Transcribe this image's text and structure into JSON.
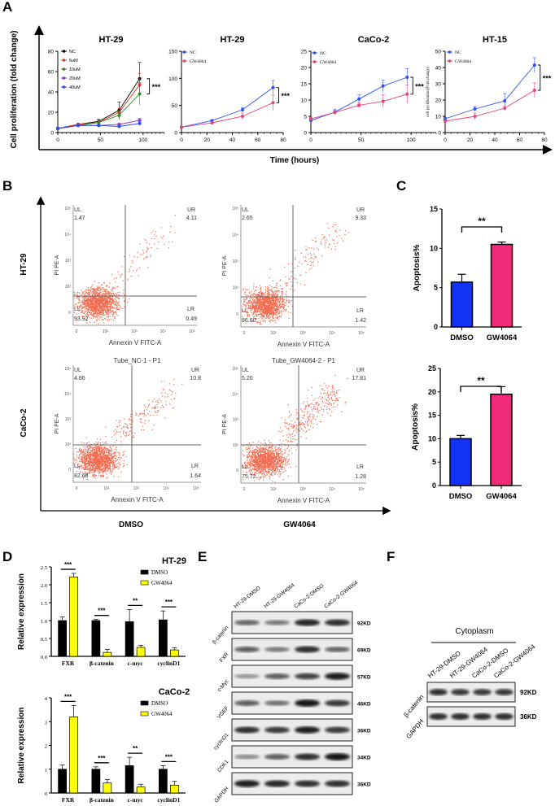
{
  "panel_labels": {
    "A": "A",
    "B": "B",
    "C": "C",
    "D": "D",
    "E": "E",
    "F": "F"
  },
  "chart_data": [
    {
      "id": "A1",
      "type": "line",
      "title": "HT-29",
      "x": [
        0,
        24,
        48,
        72,
        96
      ],
      "xlim": [
        0,
        125
      ],
      "xticks": [
        0,
        50,
        100
      ],
      "ylim": [
        0,
        80
      ],
      "yticks": [
        0,
        20,
        40,
        60,
        80
      ],
      "series": [
        {
          "name": "NC",
          "color": "#000000",
          "values": [
            4,
            8,
            11,
            22,
            53
          ],
          "err": [
            1,
            1,
            2,
            8,
            16
          ]
        },
        {
          "name": "5uM",
          "color": "#e8321e",
          "values": [
            4,
            8,
            10,
            20,
            47
          ],
          "err": [
            1,
            1,
            2,
            4,
            11
          ]
        },
        {
          "name": "10uM",
          "color": "#2a8a2a",
          "values": [
            4,
            7,
            10,
            17,
            38
          ],
          "err": [
            1,
            1,
            2,
            4,
            11
          ]
        },
        {
          "name": "20uM",
          "color": "#8a3ac0",
          "values": [
            4,
            7,
            7,
            8,
            12
          ],
          "err": [
            1,
            1,
            1,
            1,
            2
          ]
        },
        {
          "name": "40uM",
          "color": "#2a4af0",
          "values": [
            4,
            7,
            7,
            6,
            9
          ],
          "err": [
            1,
            1,
            1,
            1,
            2
          ]
        }
      ],
      "significance": "***"
    },
    {
      "id": "A2",
      "type": "line",
      "title": "HT-29",
      "x": [
        0,
        24,
        48,
        72
      ],
      "xlim": [
        0,
        80
      ],
      "xticks": [
        0,
        20,
        40,
        60,
        80
      ],
      "ylim": [
        0,
        150
      ],
      "yticks": [
        0,
        50,
        100,
        150
      ],
      "series": [
        {
          "name": "NC",
          "color": "#3050f0",
          "values": [
            10,
            22,
            42,
            83
          ],
          "err": [
            1,
            2,
            4,
            13
          ]
        },
        {
          "name": "GW4064",
          "color": "#e8407a",
          "values": [
            10,
            18,
            30,
            55
          ],
          "err": [
            1,
            2,
            6,
            14
          ]
        }
      ],
      "significance": "***"
    },
    {
      "id": "A3",
      "type": "line",
      "title": "CaCo-2",
      "x": [
        0,
        24,
        48,
        72,
        96
      ],
      "xlim": [
        0,
        125
      ],
      "xticks": [
        0,
        50,
        100
      ],
      "ylim": [
        0,
        25
      ],
      "yticks": [
        0,
        5,
        10,
        15,
        20,
        25
      ],
      "series": [
        {
          "name": "NC",
          "color": "#3050f0",
          "values": [
            3.7,
            6.3,
            10.3,
            14.3,
            17
          ],
          "err": [
            0.6,
            0.8,
            1.3,
            1.8,
            2.6
          ]
        },
        {
          "name": "GW4064",
          "color": "#e8407a",
          "values": [
            4.2,
            6.2,
            8.4,
            9.6,
            11.8
          ],
          "err": [
            0.5,
            0.6,
            0.8,
            2,
            2.8
          ]
        }
      ],
      "significance": "***"
    },
    {
      "id": "A4",
      "type": "line",
      "title": "HT-15",
      "ylabel": "cell proliferation(Fold change)",
      "x": [
        0,
        24,
        48,
        72
      ],
      "xlim": [
        0,
        80
      ],
      "xticks": [
        0,
        20,
        40,
        60,
        80
      ],
      "ylim": [
        0,
        50
      ],
      "yticks": [
        0,
        10,
        20,
        30,
        40,
        50
      ],
      "series": [
        {
          "name": "NC",
          "color": "#3050f0",
          "values": [
            8.5,
            14.5,
            19.5,
            41.5
          ],
          "err": [
            1,
            1.5,
            4.5,
            4.5
          ]
        },
        {
          "name": "GW4064",
          "color": "#e8407a",
          "values": [
            7,
            10,
            15,
            26
          ],
          "err": [
            1,
            2,
            1.5,
            4.5
          ]
        }
      ],
      "significance": "***"
    },
    {
      "id": "C1",
      "type": "bar",
      "ylabel": "Apoptosis%",
      "categories": [
        "DMSO",
        "GW4064"
      ],
      "values": [
        5.7,
        10.5
      ],
      "err": [
        1,
        0.3
      ],
      "colors": [
        "#1233f5",
        "#f02c78"
      ],
      "ylim": [
        0,
        15
      ],
      "yticks": [
        0,
        5,
        10,
        15
      ],
      "significance": "**"
    },
    {
      "id": "C2",
      "type": "bar",
      "ylabel": "Apoptosis%",
      "categories": [
        "DMSO",
        "GW4064"
      ],
      "values": [
        10,
        19.5
      ],
      "err": [
        0.7,
        1.6
      ],
      "colors": [
        "#1233f5",
        "#f02c78"
      ],
      "ylim": [
        0,
        25
      ],
      "yticks": [
        0,
        5,
        10,
        15,
        20,
        25
      ],
      "significance": "**"
    },
    {
      "id": "D1",
      "type": "bar",
      "title": "HT-29",
      "ylabel": "Relative expression",
      "categories": [
        "FXR",
        "β-catenin",
        "c-myc",
        "cyclinD1"
      ],
      "ylim": [
        0,
        2.5
      ],
      "yticks": [
        "0.0",
        "0.5",
        "1.0",
        "1.5",
        "2.0",
        "2.5"
      ],
      "series": [
        {
          "name": "DMSO",
          "color": "#000000",
          "values": [
            1,
            1,
            0.97,
            1.02
          ],
          "err": [
            0.1,
            0.03,
            0.34,
            0.25
          ]
        },
        {
          "name": "GW4064",
          "color": "#ffff00",
          "values": [
            2.22,
            0.11,
            0.25,
            0.18
          ],
          "err": [
            0.1,
            0.08,
            0.06,
            0.06
          ]
        }
      ],
      "significance": [
        "***",
        "***",
        "**",
        "***"
      ]
    },
    {
      "id": "D2",
      "type": "bar",
      "title": "CaCo-2",
      "ylabel": "Relative expression",
      "categories": [
        "FXR",
        "β-catenin",
        "c-myc",
        "cyclinD1"
      ],
      "ylim": [
        0,
        4
      ],
      "yticks": [
        "0",
        "1",
        "2",
        "3",
        "4"
      ],
      "series": [
        {
          "name": "DMSO",
          "color": "#000000",
          "values": [
            1,
            1,
            1.15,
            1
          ],
          "err": [
            0.18,
            0.1,
            0.35,
            0.15
          ]
        },
        {
          "name": "GW4064",
          "color": "#ffff00",
          "values": [
            3.2,
            0.42,
            0.25,
            0.33
          ],
          "err": [
            0.48,
            0.14,
            0.12,
            0.16
          ]
        }
      ],
      "significance": [
        "***",
        "***",
        "**",
        "***"
      ]
    }
  ],
  "panel_a": {
    "ylabel": "Cell proliferation (fold change)",
    "xlabel": "Time (hours)"
  },
  "panel_b": {
    "row_labels": [
      "HT-29",
      "CaCo-2"
    ],
    "col_labels": [
      "DMSO",
      "GW4064"
    ],
    "xlabel": "Annexin V FITC-A",
    "ylabel": "PI PE-A",
    "xticks": [
      "0",
      "10²",
      "10³",
      "10⁴",
      "10⁵"
    ],
    "yticks": [
      "0",
      "10²",
      "10³",
      "10⁴",
      "10⁵"
    ],
    "plots": [
      {
        "title": "",
        "UL": "1.47",
        "UR": "4.11",
        "LL": "93.92",
        "LR": "0.49"
      },
      {
        "title": "",
        "UL": "2.65",
        "UR": "9.33",
        "LL": "86.60",
        "LR": "1.42"
      },
      {
        "title": "Tube_NC-1 - P1",
        "UL": "4.86",
        "UR": "10.8",
        "LL": "82.68",
        "LR": "1.64"
      },
      {
        "title": "Tube_GW4064-2 - P1",
        "UL": "5.20",
        "UR": "17.81",
        "LL": "75.72",
        "LR": "1.28"
      }
    ],
    "point_color": "#f26a4f"
  },
  "panel_e": {
    "lanes": [
      "HT-29-DMSO",
      "HT-29-GW4064",
      "CaCo-2-DMSO",
      "CaCo-2-GW4064"
    ],
    "rows": [
      {
        "protein": "β-catenin",
        "size": "92KD",
        "band_intensity": [
          0.55,
          0.45,
          0.9,
          0.85
        ]
      },
      {
        "protein": "FXR",
        "size": "69KD",
        "band_intensity": [
          0.6,
          0.45,
          0.85,
          0.55
        ]
      },
      {
        "protein": "c-Myc",
        "size": "57KD",
        "band_intensity": [
          0.3,
          0.6,
          0.75,
          0.95
        ]
      },
      {
        "protein": "VGEF",
        "size": "46KD",
        "band_intensity": [
          0.6,
          0.5,
          1.0,
          0.8
        ]
      },
      {
        "protein": "cyclinD1",
        "size": "36KD",
        "band_intensity": [
          0.85,
          0.8,
          0.95,
          0.8
        ]
      },
      {
        "protein": "CDK1",
        "size": "34KD",
        "band_intensity": [
          0.35,
          0.6,
          0.85,
          1.0
        ]
      },
      {
        "protein": "GAPDH",
        "size": "36KD",
        "band_intensity": [
          0.95,
          0.9,
          0.85,
          0.85
        ]
      }
    ]
  },
  "panel_f": {
    "heading": "Cytoplasm",
    "lanes": [
      "HT-29-DMSO",
      "HT-29-GW4064",
      "CaCo-2-DMSO",
      "CaCo-2-GW4064"
    ],
    "rows": [
      {
        "protein": "β-catenin",
        "size": "92KD",
        "band_intensity": [
          0.85,
          0.8,
          0.8,
          0.8
        ]
      },
      {
        "protein": "GAPDH",
        "size": "36KD",
        "band_intensity": [
          0.85,
          0.85,
          0.85,
          0.85
        ]
      }
    ]
  }
}
